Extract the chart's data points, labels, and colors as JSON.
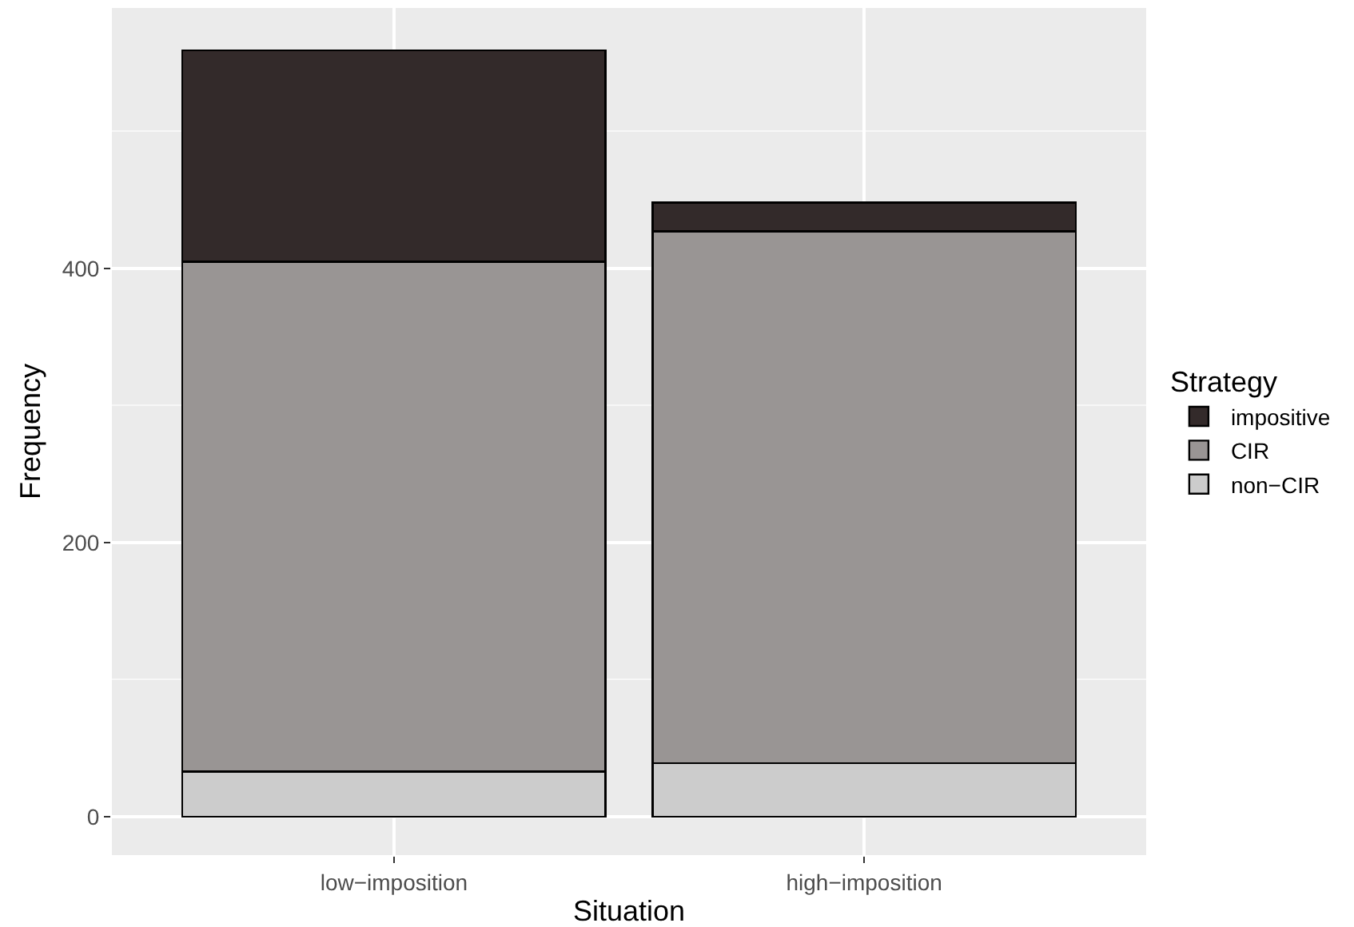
{
  "chart_data": {
    "type": "bar",
    "xlabel": "Situation",
    "ylabel": "Frequency",
    "legend_title": "Strategy",
    "categories": [
      "low−imposition",
      "high−imposition"
    ],
    "stacked": true,
    "series": [
      {
        "name": "non−CIR",
        "color": "#cccccc",
        "values": [
          33,
          39
        ]
      },
      {
        "name": "CIR",
        "color": "#999594",
        "values": [
          372,
          388
        ]
      },
      {
        "name": "impositive",
        "color": "#332a2a",
        "values": [
          154,
          21
        ]
      }
    ],
    "ylim": [
      -28,
      590
    ],
    "yticks": [
      0,
      200,
      400
    ],
    "grid": true,
    "legend": "right"
  }
}
